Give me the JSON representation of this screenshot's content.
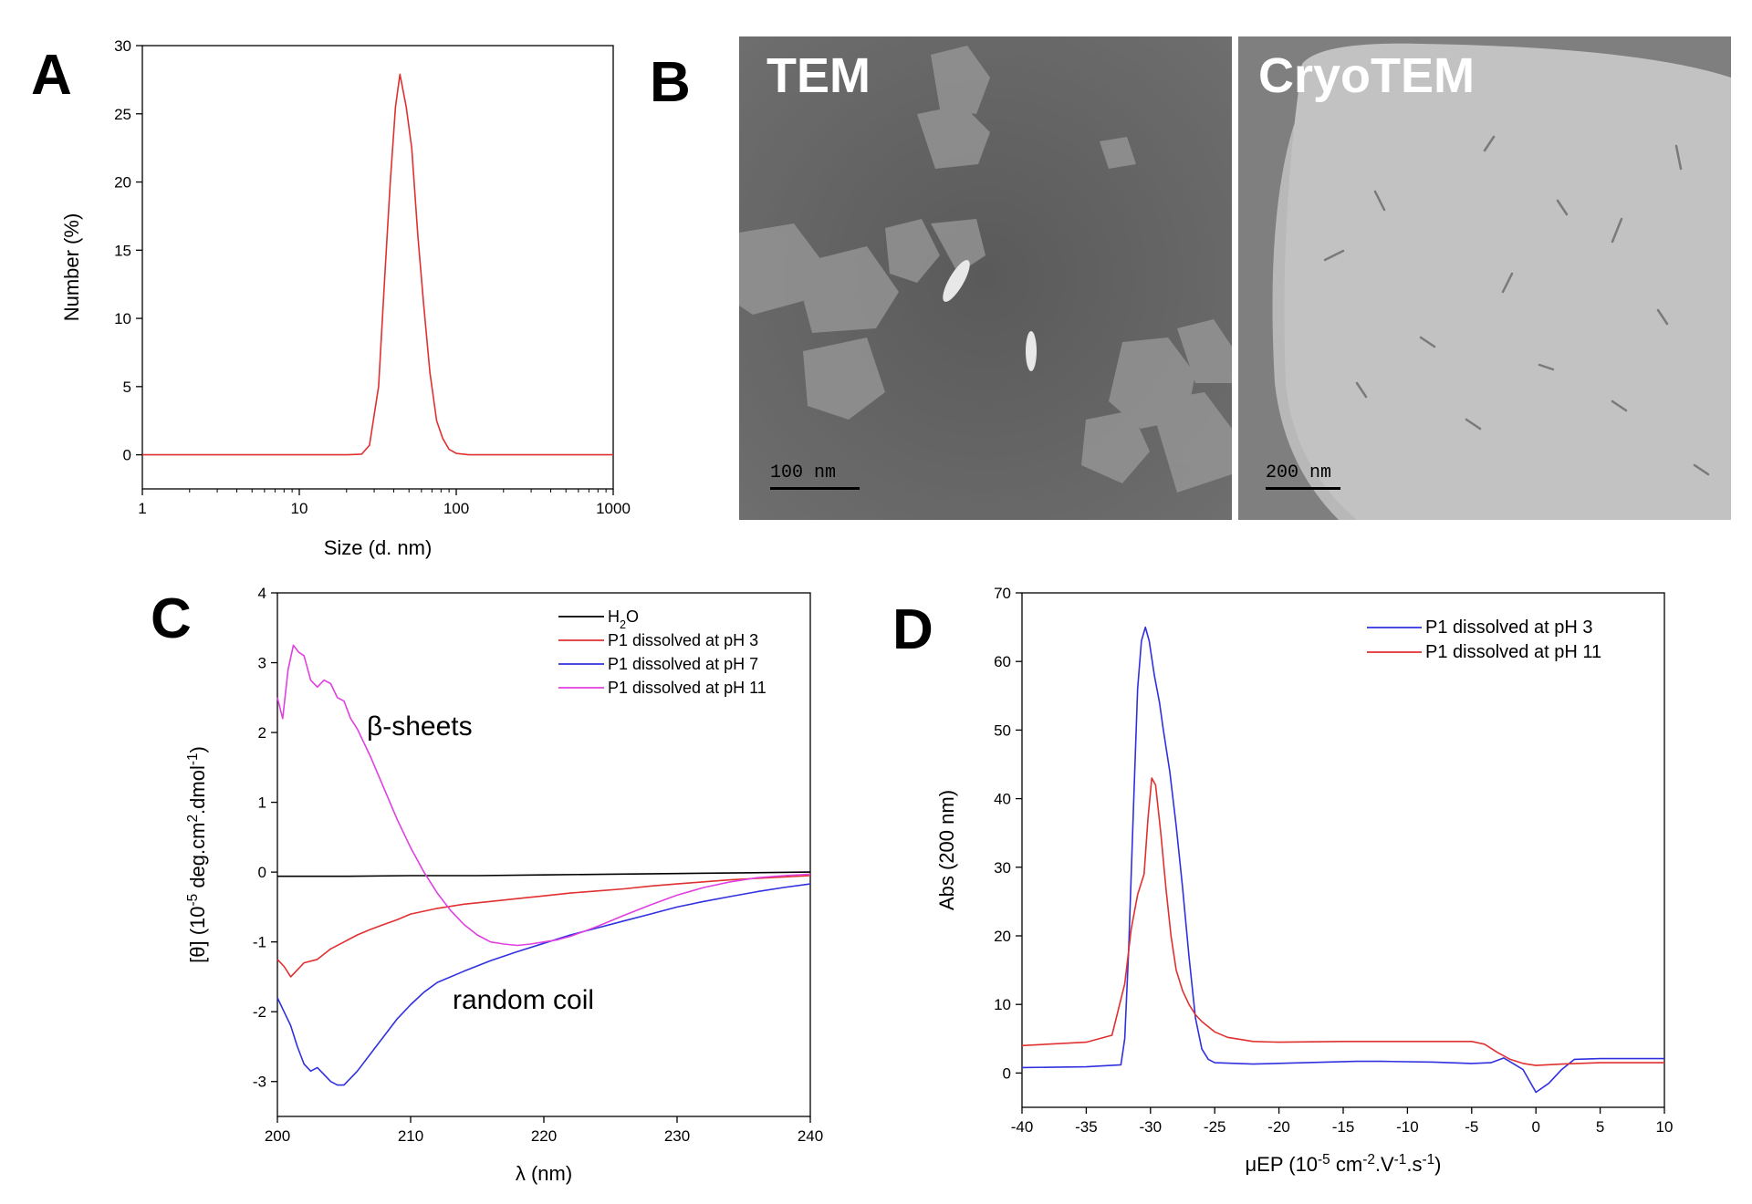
{
  "panel_letters": {
    "a": "A",
    "b": "B",
    "c": "C",
    "d": "D"
  },
  "micrographs": {
    "tem": {
      "label": "TEM",
      "scale_label": "100 nm"
    },
    "cryotem": {
      "label": "CryoTEM",
      "scale_label": "200 nm"
    }
  },
  "chart_data": [
    {
      "panel": "A",
      "type": "line",
      "xscale": "log",
      "xlabel": "Size (d. nm)",
      "ylabel": "Number (%)",
      "xlim": [
        1,
        1000
      ],
      "ylim": [
        -2.5,
        30
      ],
      "xticks": [
        1,
        10,
        100,
        1000
      ],
      "yticks": [
        0,
        5,
        10,
        15,
        20,
        25,
        30
      ],
      "series": [
        {
          "color": "#e03030",
          "x": [
            1,
            20,
            25,
            28,
            32,
            35,
            38,
            41,
            43.8,
            48,
            52,
            57,
            62,
            68,
            75,
            82,
            90,
            100,
            120,
            1000
          ],
          "y": [
            0,
            0,
            0.05,
            0.7,
            5,
            13,
            20,
            25.5,
            27.9,
            25.5,
            22.5,
            16,
            11,
            6,
            2.5,
            1.2,
            0.4,
            0.1,
            0,
            0
          ]
        }
      ]
    },
    {
      "panel": "C",
      "type": "line",
      "xlabel": "λ (nm)",
      "ylabel": "[θ] (10⁻⁵ deg.cm².dmol⁻¹)",
      "xlim": [
        200,
        240
      ],
      "ylim": [
        -3.5,
        4
      ],
      "xticks": [
        200,
        210,
        220,
        230,
        240
      ],
      "yticks": [
        -3,
        -2,
        -1,
        0,
        1,
        2,
        3,
        4
      ],
      "legend_position": "top-right",
      "annotations": [
        "β-sheets",
        "random coil"
      ],
      "series": [
        {
          "name": "H₂O",
          "color": "#000000",
          "x": [
            200,
            205,
            210,
            215,
            220,
            225,
            230,
            235,
            240
          ],
          "y": [
            -0.06,
            -0.06,
            -0.05,
            -0.05,
            -0.04,
            -0.03,
            -0.02,
            -0.01,
            0
          ]
        },
        {
          "name": "P1 dissolved at pH 3",
          "color": "#e03030",
          "x": [
            200,
            200.5,
            201,
            201.5,
            202,
            203,
            204,
            205,
            206,
            207,
            208,
            209,
            210,
            212,
            214,
            216,
            218,
            220,
            222,
            224,
            226,
            228,
            230,
            232,
            234,
            236,
            238,
            240
          ],
          "y": [
            -1.25,
            -1.35,
            -1.5,
            -1.4,
            -1.3,
            -1.25,
            -1.1,
            -1.0,
            -0.9,
            -0.82,
            -0.75,
            -0.68,
            -0.6,
            -0.52,
            -0.46,
            -0.42,
            -0.38,
            -0.34,
            -0.3,
            -0.27,
            -0.24,
            -0.2,
            -0.17,
            -0.14,
            -0.11,
            -0.09,
            -0.07,
            -0.05
          ]
        },
        {
          "name": "P1 dissolved at pH 7",
          "color": "#3030e0",
          "x": [
            200,
            200.5,
            201,
            201.5,
            202,
            202.5,
            203,
            203.5,
            204,
            204.5,
            205,
            205.5,
            206,
            207,
            208,
            209,
            210,
            211,
            212,
            214,
            216,
            218,
            220,
            222,
            224,
            226,
            228,
            230,
            232,
            234,
            236,
            238,
            240
          ],
          "y": [
            -1.8,
            -2.0,
            -2.2,
            -2.5,
            -2.75,
            -2.85,
            -2.8,
            -2.9,
            -3.0,
            -3.05,
            -3.05,
            -2.95,
            -2.85,
            -2.6,
            -2.35,
            -2.1,
            -1.9,
            -1.72,
            -1.58,
            -1.42,
            -1.27,
            -1.14,
            -1.02,
            -0.9,
            -0.8,
            -0.7,
            -0.6,
            -0.5,
            -0.42,
            -0.35,
            -0.28,
            -0.22,
            -0.17
          ]
        },
        {
          "name": "P1 dissolved at pH 11",
          "color": "#e040e0",
          "x": [
            200,
            200.4,
            200.8,
            201.2,
            201.6,
            202,
            202.5,
            203,
            203.5,
            204,
            204.5,
            205,
            205.5,
            206,
            207,
            208,
            209,
            210,
            211,
            212,
            213,
            214,
            215,
            216,
            217,
            218,
            219,
            220,
            221,
            222,
            223,
            224,
            226,
            228,
            230,
            232,
            234,
            236,
            238,
            240
          ],
          "y": [
            2.5,
            2.2,
            2.9,
            3.25,
            3.15,
            3.1,
            2.75,
            2.65,
            2.75,
            2.7,
            2.5,
            2.45,
            2.2,
            2.05,
            1.65,
            1.2,
            0.75,
            0.35,
            0.0,
            -0.3,
            -0.55,
            -0.75,
            -0.9,
            -1.0,
            -1.03,
            -1.05,
            -1.03,
            -1.0,
            -0.97,
            -0.92,
            -0.85,
            -0.78,
            -0.62,
            -0.47,
            -0.33,
            -0.22,
            -0.14,
            -0.08,
            -0.05,
            -0.03
          ]
        }
      ]
    },
    {
      "panel": "D",
      "type": "line",
      "xlabel": "μEP (10⁻⁵ cm⁻².V⁻¹.s⁻¹)",
      "ylabel": "Abs (200 nm)",
      "xlim": [
        -40,
        10
      ],
      "ylim": [
        -5,
        70
      ],
      "xticks": [
        -40,
        -35,
        -30,
        -25,
        -20,
        -15,
        -10,
        -5,
        0,
        5,
        10
      ],
      "yticks": [
        0,
        10,
        20,
        30,
        40,
        50,
        60,
        70
      ],
      "legend_position": "top-right",
      "series": [
        {
          "name": "P1 dissolved at pH 3",
          "color": "#3030e0",
          "x": [
            -40,
            -35,
            -32.3,
            -32,
            -31.7,
            -31.3,
            -31,
            -30.7,
            -30.4,
            -30.1,
            -29.7,
            -29.3,
            -29,
            -28.5,
            -28,
            -27.5,
            -27,
            -26.5,
            -26,
            -25.5,
            -25,
            -22,
            -18,
            -14,
            -12,
            -8,
            -5,
            -3.5,
            -2.5,
            -1,
            0,
            1,
            2,
            3,
            5,
            10
          ],
          "y": [
            0.8,
            0.9,
            1.2,
            5,
            18,
            40,
            56,
            63,
            65,
            63,
            58,
            54,
            50,
            44,
            36,
            27,
            17,
            8,
            3.5,
            2,
            1.5,
            1.3,
            1.5,
            1.7,
            1.7,
            1.6,
            1.4,
            1.5,
            2.2,
            0.5,
            -2.8,
            -1.5,
            0.5,
            2,
            2.1,
            2.1
          ]
        },
        {
          "name": "P1 dissolved at pH 11",
          "color": "#e03030",
          "x": [
            -40,
            -35,
            -33,
            -32,
            -31.5,
            -31,
            -30.5,
            -30.2,
            -29.9,
            -29.6,
            -29.2,
            -28.8,
            -28.4,
            -28,
            -27.5,
            -27,
            -26.5,
            -26,
            -25,
            -24,
            -22,
            -20,
            -15,
            -10,
            -5,
            -4,
            -3,
            -2,
            -1,
            0,
            2,
            5,
            10
          ],
          "y": [
            4,
            4.5,
            5.5,
            13,
            21,
            26,
            29,
            37,
            43,
            42,
            35,
            27,
            20,
            15,
            12,
            10,
            8.5,
            7.5,
            6,
            5.2,
            4.6,
            4.5,
            4.6,
            4.6,
            4.6,
            4.2,
            3,
            2,
            1.4,
            1.1,
            1.3,
            1.5,
            1.5
          ]
        }
      ]
    }
  ]
}
